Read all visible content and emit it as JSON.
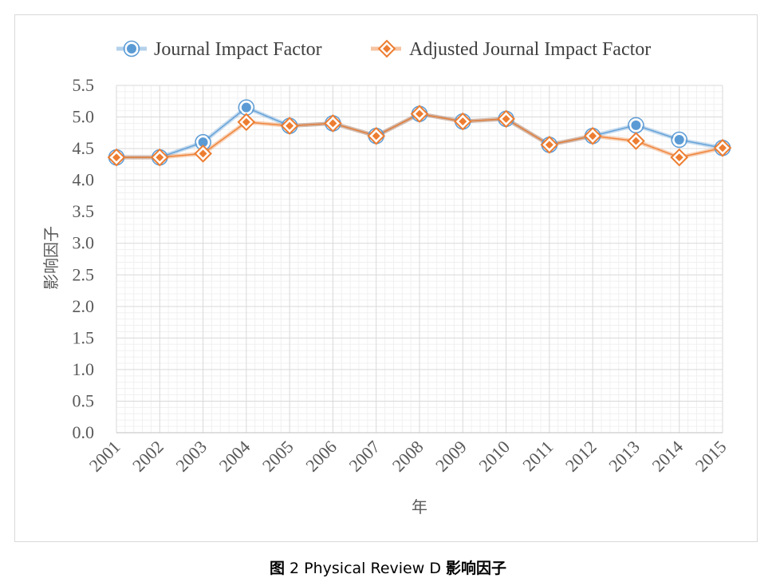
{
  "chart_data": {
    "type": "line",
    "title": "",
    "xlabel": "年",
    "ylabel": "影响因子",
    "categories": [
      "2001",
      "2002",
      "2003",
      "2004",
      "2005",
      "2006",
      "2007",
      "2008",
      "2009",
      "2010",
      "2011",
      "2012",
      "2013",
      "2014",
      "2015"
    ],
    "yticks": [
      "0.0",
      "0.5",
      "1.0",
      "1.5",
      "2.0",
      "2.5",
      "3.0",
      "3.5",
      "4.0",
      "4.5",
      "5.0",
      "5.5"
    ],
    "ylim": [
      0,
      5.5
    ],
    "grid": true,
    "legend_position": "top",
    "series": [
      {
        "name": "Journal Impact Factor",
        "color": "#5b9bd5",
        "marker": "circle",
        "values": [
          4.36,
          4.36,
          4.6,
          5.15,
          4.86,
          4.9,
          4.7,
          5.05,
          4.93,
          4.97,
          4.56,
          4.7,
          4.87,
          4.64,
          4.51
        ]
      },
      {
        "name": "Adjusted Journal Impact Factor",
        "color": "#ed7d31",
        "marker": "diamond",
        "values": [
          4.36,
          4.36,
          4.42,
          4.92,
          4.86,
          4.9,
          4.7,
          5.05,
          4.93,
          4.97,
          4.56,
          4.7,
          4.62,
          4.36,
          4.51
        ]
      }
    ]
  },
  "caption": {
    "label": "图",
    "body": " 2 Physical Review D ",
    "tail": "影响因子"
  }
}
